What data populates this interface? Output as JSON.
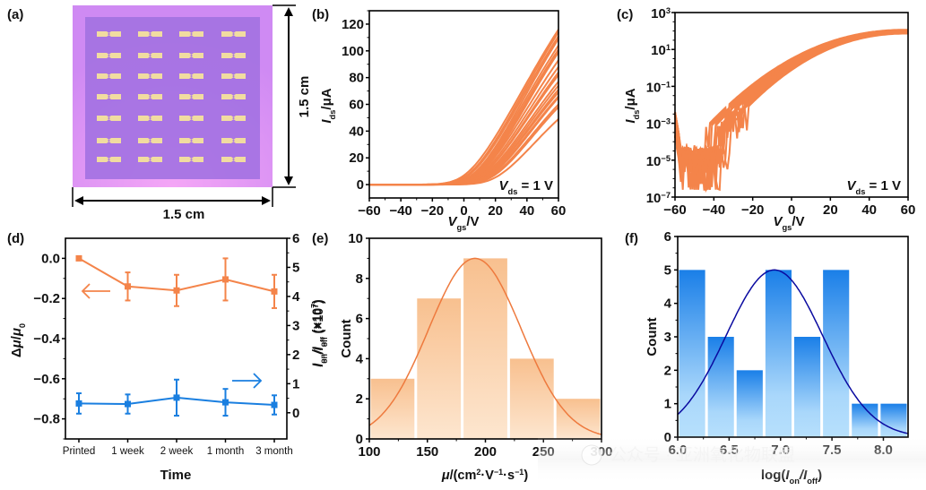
{
  "colors": {
    "orange": "#f4844a",
    "orange_fit": "#ee7a3e",
    "blue": "#1a7fe0",
    "fit_blue": "#0a0aa0",
    "substrate_outer": "#d58ef5",
    "substrate_inner": "#a472e2",
    "electrode": "#f1dca0"
  },
  "watermark": "公众号 · 亚洲氧化物联盟",
  "panel_a": {
    "label": "(a)",
    "width_label": "1.5 cm",
    "height_label": "1.5 cm",
    "device_rows": 7,
    "device_cols": 4
  },
  "chart_data": [
    {
      "id": "b",
      "panel_label": "(b)",
      "type": "line",
      "title": "",
      "xlabel_main": "V",
      "xlabel_sub": "gs",
      "xlabel_unit": "/V",
      "ylabel_main": "I",
      "ylabel_sub": "ds",
      "ylabel_unit": "/μA",
      "xlim": [
        -60,
        60
      ],
      "ylim": [
        -10,
        130
      ],
      "xticks": [
        -60,
        -40,
        -20,
        0,
        20,
        40,
        60
      ],
      "xtick_labels": [
        "−60",
        "−40",
        "−20",
        "0",
        "20",
        "40",
        "60"
      ],
      "yticks": [
        0,
        20,
        40,
        60,
        80,
        100,
        120
      ],
      "ytick_labels": [
        "0",
        "20",
        "40",
        "60",
        "80",
        "100",
        "120"
      ],
      "annotation": {
        "main": "V",
        "sub": "ds",
        "rest": " = 1 V"
      },
      "series_endpoints_at_60V": [
        116,
        114,
        111,
        109,
        104,
        101,
        100,
        99,
        93,
        88,
        84,
        82,
        77,
        74,
        71,
        69,
        66,
        65,
        60,
        58,
        49
      ],
      "series_threshold_V": [
        -5,
        -3,
        -2,
        0,
        0,
        1,
        2,
        3,
        3,
        4,
        5,
        5,
        6,
        7,
        8,
        8,
        9,
        10,
        11,
        12,
        14
      ],
      "grid": false
    },
    {
      "id": "c",
      "panel_label": "(c)",
      "type": "line",
      "yscale": "log",
      "xlabel_main": "V",
      "xlabel_sub": "gs",
      "xlabel_unit": "/V",
      "ylabel_main": "I",
      "ylabel_sub": "ds",
      "ylabel_unit": "/μA",
      "xlim": [
        -60,
        60
      ],
      "ylim_log10": [
        -7,
        3
      ],
      "xticks": [
        -60,
        -40,
        -20,
        0,
        20,
        40,
        60
      ],
      "xtick_labels": [
        "−60",
        "−40",
        "−20",
        "0",
        "20",
        "40",
        "60"
      ],
      "yticks_log10": [
        3,
        1,
        -1,
        -3,
        -5,
        -7
      ],
      "ytick_labels": [
        {
          "base": "10",
          "exp": "3"
        },
        {
          "base": "10",
          "exp": "1"
        },
        {
          "base": "10",
          "exp": "−1"
        },
        {
          "base": "10",
          "exp": "−3"
        },
        {
          "base": "10",
          "exp": "−5"
        },
        {
          "base": "10",
          "exp": "−7"
        }
      ],
      "annotation": {
        "main": "V",
        "sub": "ds",
        "rest": " = 1 V"
      },
      "on_current_log10_at_60V": [
        2.07,
        2.05,
        2.04,
        2.02,
        2.0,
        1.98,
        1.96,
        1.94,
        1.92,
        1.9,
        1.88,
        1.86
      ],
      "off_floor_log10": -4.2,
      "grid": false
    },
    {
      "id": "d",
      "panel_label": "(d)",
      "type": "line",
      "xlabel": "Time",
      "categories": [
        "Printed",
        "1 week",
        "2 week",
        "1 month",
        "3 month"
      ],
      "left_axis": {
        "label_main": "Δμ/μ",
        "label_sub": "0",
        "ylim": [
          -0.9,
          0.1
        ],
        "ticks": [
          0.0,
          -0.2,
          -0.4,
          -0.6,
          -0.8
        ],
        "tick_labels": [
          "0.0",
          "−0.2",
          "−0.4",
          "−0.6",
          "−0.8"
        ]
      },
      "right_axis": {
        "label": "I_on/I_off (×10^7)",
        "label_parts": {
          "a": "I",
          "a_sub": "on",
          "b": "/I",
          "b_sub": "off",
          "rest": " (×10",
          "exp": "7",
          "close": ")"
        },
        "ylim": [
          -0.9,
          6
        ],
        "ticks": [
          0,
          1,
          2,
          3,
          4,
          5,
          6
        ],
        "tick_labels": [
          "0",
          "1",
          "2",
          "3",
          "4",
          "5",
          "6"
        ]
      },
      "series": [
        {
          "name": "Δμ/μ0",
          "axis": "left",
          "color": "orange",
          "values": [
            0.0,
            -0.14,
            -0.16,
            -0.105,
            -0.165
          ],
          "errors": [
            0.0,
            0.07,
            0.078,
            0.105,
            0.083
          ]
        },
        {
          "name": "Ion/Ioff",
          "axis": "right",
          "color": "blue",
          "values": [
            0.32,
            0.3,
            0.52,
            0.36,
            0.27
          ],
          "errors": [
            0.35,
            0.33,
            0.62,
            0.46,
            0.33
          ]
        }
      ],
      "arrows": [
        {
          "series": "Δμ/μ0",
          "direction": "left"
        },
        {
          "series": "Ion/Ioff",
          "direction": "right"
        }
      ]
    },
    {
      "id": "e",
      "panel_label": "(e)",
      "type": "bar",
      "xlabel": "μ/(cm²·V⁻¹·s⁻¹)",
      "xlabel_parts": {
        "mu": "μ",
        "rest": "/(cm",
        "e1": "2",
        "m": "·V",
        "e2": "−1",
        "m2": "·s",
        "e3": "−1",
        "close": ")"
      },
      "ylabel": "Count",
      "overlapping_ylabel": {
        "a": "I",
        "a_sub": "on",
        "b": "/I",
        "b_sub": "off",
        "rest": " (×10",
        "exp": "7",
        "close": ")"
      },
      "xlim": [
        100,
        300
      ],
      "ylim": [
        0,
        10
      ],
      "xticks": [
        100,
        150,
        200,
        250,
        300
      ],
      "yticks": [
        0,
        2,
        4,
        6,
        8,
        10
      ],
      "bins": [
        [
          100,
          140
        ],
        [
          140,
          180
        ],
        [
          180,
          220
        ],
        [
          220,
          260
        ],
        [
          260,
          300
        ]
      ],
      "values": [
        3,
        7,
        9,
        4,
        2
      ],
      "fit": {
        "type": "gaussian",
        "mean": 191,
        "sigma": 40,
        "peak": 9
      }
    },
    {
      "id": "f",
      "panel_label": "(f)",
      "type": "bar",
      "xlabel_parts": {
        "pre": "log(",
        "a": "I",
        "a_sub": "on",
        "b": "/I",
        "b_sub": "off",
        "close": ")"
      },
      "ylabel": "Count",
      "xlim": [
        6.0,
        8.24
      ],
      "ylim": [
        0,
        6
      ],
      "xticks": [
        6.0,
        6.5,
        7.0,
        7.5,
        8.0
      ],
      "xtick_labels": [
        "6.0",
        "6.5",
        "7.0",
        "7.5",
        "8.0"
      ],
      "yticks": [
        0,
        1,
        2,
        3,
        4,
        5,
        6
      ],
      "bins": [
        [
          6.0,
          6.28
        ],
        [
          6.28,
          6.56
        ],
        [
          6.56,
          6.84
        ],
        [
          6.84,
          7.12
        ],
        [
          7.12,
          7.4
        ],
        [
          7.4,
          7.68
        ],
        [
          7.68,
          7.96
        ],
        [
          7.96,
          8.24
        ]
      ],
      "values": [
        5,
        3,
        2,
        5,
        3,
        5,
        1,
        1
      ],
      "fit": {
        "type": "gaussian",
        "mean": 6.94,
        "sigma": 0.47,
        "peak": 5
      }
    }
  ]
}
